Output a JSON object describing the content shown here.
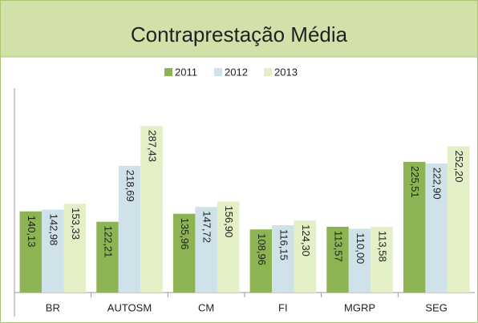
{
  "chart_data": {
    "type": "bar",
    "title": "Contraprestação Média",
    "categories": [
      "BR",
      "AUTOSM",
      "CM",
      "FI",
      "MGRP",
      "SEG"
    ],
    "series": [
      {
        "name": "2011",
        "color": "#8db452",
        "values": [
          140.13,
          122.21,
          135.96,
          108.96,
          113.57,
          225.51
        ],
        "value_labels": [
          "140,13",
          "122,21",
          "135,96",
          "108,96",
          "113,57",
          "225,51"
        ]
      },
      {
        "name": "2012",
        "color": "#cfe1e9",
        "values": [
          142.98,
          218.69,
          147.72,
          116.15,
          110.0,
          222.9
        ],
        "value_labels": [
          "142,98",
          "218,69",
          "147,72",
          "116,15",
          "110,00",
          "222,90"
        ]
      },
      {
        "name": "2013",
        "color": "#e3efc4",
        "values": [
          153.33,
          287.43,
          156.9,
          124.3,
          113.58,
          252.2
        ],
        "value_labels": [
          "153,33",
          "287,43",
          "156,90",
          "124,30",
          "113,58",
          "252,20"
        ]
      }
    ],
    "ylim": [
      0,
      350
    ],
    "legend": "top"
  }
}
